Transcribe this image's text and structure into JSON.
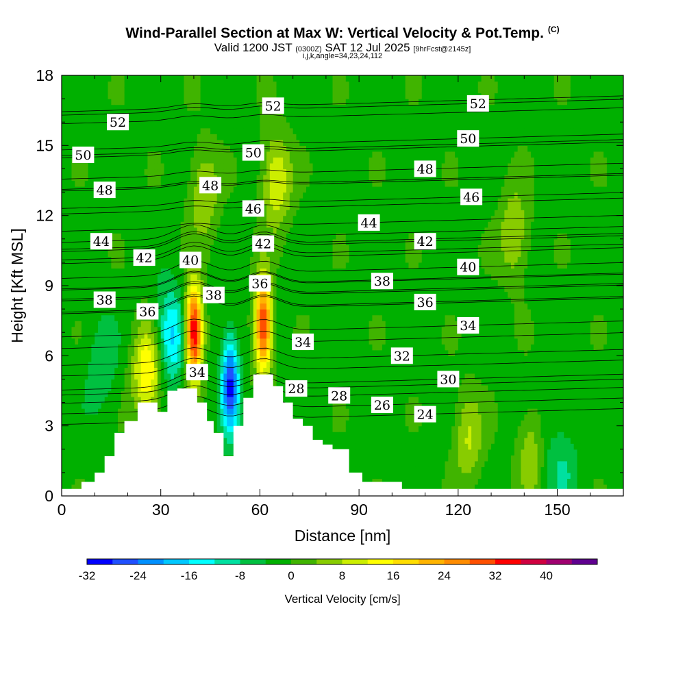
{
  "header": {
    "title": "Wind-Parallel Section at Max W: Vertical Velocity & Pot.Temp.",
    "copyright": "(C)",
    "valid_main": "Valid 1200 JST",
    "valid_utc": "(0300Z)",
    "valid_date": "SAT 12 Jul 2025",
    "forecast": "[9hrFcst@2145z]",
    "indices": "i,j,k,angle=34,23,24,112"
  },
  "chart_data": {
    "type": "heatmap",
    "xlabel": "Distance [nm]",
    "ylabel": "Height [Kft MSL]",
    "xlim": [
      0,
      170
    ],
    "ylim": [
      0,
      18
    ],
    "x_ticks": [
      "0",
      "30",
      "60",
      "90",
      "120",
      "150"
    ],
    "y_ticks": [
      "0",
      "3",
      "6",
      "9",
      "12",
      "15",
      "18"
    ],
    "colorbar": {
      "label": "Vertical Velocity [cm/s]",
      "tick_labels": [
        "-32",
        "-24",
        "-16",
        "-8",
        "0",
        "8",
        "16",
        "24",
        "32",
        "40"
      ],
      "levels": [
        -32,
        -28,
        -24,
        -20,
        -16,
        -12,
        -8,
        -4,
        0,
        4,
        8,
        12,
        16,
        20,
        24,
        28,
        32,
        36,
        40,
        44
      ],
      "colors": [
        "#0000ff",
        "#2050ff",
        "#0090ff",
        "#00c8ff",
        "#00ffff",
        "#00e0a0",
        "#00c040",
        "#00b000",
        "#40b400",
        "#88cc00",
        "#ccee00",
        "#ffff00",
        "#ffdd00",
        "#ffb400",
        "#ff8c00",
        "#ff5000",
        "#ff0000",
        "#d00040",
        "#a00070",
        "#600090"
      ]
    },
    "terrain_profile": [
      [
        0,
        0.3
      ],
      [
        6,
        0.3
      ],
      [
        6,
        0.6
      ],
      [
        10,
        0.6
      ],
      [
        10,
        1.0
      ],
      [
        13,
        1.0
      ],
      [
        13,
        1.7
      ],
      [
        16,
        1.7
      ],
      [
        16,
        2.7
      ],
      [
        19,
        2.7
      ],
      [
        19,
        3.2
      ],
      [
        23,
        3.2
      ],
      [
        23,
        4.0
      ],
      [
        29,
        4.0
      ],
      [
        29,
        3.6
      ],
      [
        32,
        3.6
      ],
      [
        32,
        4.5
      ],
      [
        35,
        4.5
      ],
      [
        35,
        4.6
      ],
      [
        41,
        4.6
      ],
      [
        41,
        4.0
      ],
      [
        44,
        4.0
      ],
      [
        44,
        3.2
      ],
      [
        46,
        3.2
      ],
      [
        46,
        2.7
      ],
      [
        49,
        2.7
      ],
      [
        49,
        1.7
      ],
      [
        52,
        1.7
      ],
      [
        52,
        3.0
      ],
      [
        55,
        3.0
      ],
      [
        55,
        4.2
      ],
      [
        58,
        4.2
      ],
      [
        58,
        5.2
      ],
      [
        64,
        5.2
      ],
      [
        64,
        4.7
      ],
      [
        67,
        4.7
      ],
      [
        67,
        4.0
      ],
      [
        70,
        4.0
      ],
      [
        70,
        3.3
      ],
      [
        73,
        3.3
      ],
      [
        73,
        3.0
      ],
      [
        76,
        3.0
      ],
      [
        76,
        2.4
      ],
      [
        79,
        2.4
      ],
      [
        79,
        2.2
      ],
      [
        82,
        2.2
      ],
      [
        82,
        2.0
      ],
      [
        87,
        2.0
      ],
      [
        87,
        1.0
      ],
      [
        91,
        1.0
      ],
      [
        91,
        0.6
      ],
      [
        103,
        0.6
      ],
      [
        103,
        0.3
      ],
      [
        170,
        0.3
      ]
    ],
    "features": [
      {
        "type": "updraft",
        "x": 40,
        "y": 7.0,
        "value": 40
      },
      {
        "type": "updraft",
        "x": 61,
        "y": 7.3,
        "value": 36
      },
      {
        "type": "downdraft",
        "x": 51,
        "y": 4.8,
        "value": -28
      },
      {
        "type": "updraft",
        "x": 26,
        "y": 5.3,
        "value": 18
      },
      {
        "type": "updraft",
        "x": 65,
        "y": 13.5,
        "value": 14
      },
      {
        "type": "updraft",
        "x": 43,
        "y": 13.0,
        "value": 10
      },
      {
        "type": "updraft",
        "x": 137,
        "y": 11.2,
        "value": 10
      },
      {
        "type": "updraft",
        "x": 143,
        "y": 1.8,
        "value": 14
      },
      {
        "type": "updraft",
        "x": 123,
        "y": 2.5,
        "value": 10
      },
      {
        "type": "downdraft",
        "x": 33,
        "y": 6.8,
        "value": -16
      },
      {
        "type": "downdraft",
        "x": 12,
        "y": 5.5,
        "value": -6
      },
      {
        "type": "downdraft",
        "x": 145,
        "y": 1.8,
        "value": -8
      },
      {
        "type": "downdraft",
        "x": 152,
        "y": 1.2,
        "value": -6
      }
    ],
    "isentropes": [
      {
        "theta": "52",
        "x": 17,
        "y": 16.0
      },
      {
        "theta": "52",
        "x": 64,
        "y": 16.7
      },
      {
        "theta": "52",
        "x": 126,
        "y": 16.8
      },
      {
        "theta": "50",
        "x": 6.5,
        "y": 14.6
      },
      {
        "theta": "50",
        "x": 58,
        "y": 14.7
      },
      {
        "theta": "50",
        "x": 123,
        "y": 15.3
      },
      {
        "theta": "48",
        "x": 13,
        "y": 13.1
      },
      {
        "theta": "48",
        "x": 45,
        "y": 13.3
      },
      {
        "theta": "48",
        "x": 110,
        "y": 14.0
      },
      {
        "theta": "46",
        "x": 58,
        "y": 12.3
      },
      {
        "theta": "46",
        "x": 124,
        "y": 12.8
      },
      {
        "theta": "44",
        "x": 93,
        "y": 11.7
      },
      {
        "theta": "44",
        "x": 12,
        "y": 10.9
      },
      {
        "theta": "42",
        "x": 25,
        "y": 10.2
      },
      {
        "theta": "42",
        "x": 61,
        "y": 10.8
      },
      {
        "theta": "42",
        "x": 110,
        "y": 10.9
      },
      {
        "theta": "40",
        "x": 39,
        "y": 10.1
      },
      {
        "theta": "40",
        "x": 123,
        "y": 9.8
      },
      {
        "theta": "38",
        "x": 13,
        "y": 8.4
      },
      {
        "theta": "38",
        "x": 46,
        "y": 8.6
      },
      {
        "theta": "38",
        "x": 97,
        "y": 9.2
      },
      {
        "theta": "36",
        "x": 26,
        "y": 7.9
      },
      {
        "theta": "36",
        "x": 60,
        "y": 9.1
      },
      {
        "theta": "36",
        "x": 110,
        "y": 8.3
      },
      {
        "theta": "34",
        "x": 41,
        "y": 5.3
      },
      {
        "theta": "34",
        "x": 73,
        "y": 6.6
      },
      {
        "theta": "34",
        "x": 123,
        "y": 7.3
      },
      {
        "theta": "32",
        "x": 103,
        "y": 6.0
      },
      {
        "theta": "30",
        "x": 117,
        "y": 5.0
      },
      {
        "theta": "28",
        "x": 71,
        "y": 4.6
      },
      {
        "theta": "28",
        "x": 84,
        "y": 4.3
      },
      {
        "theta": "26",
        "x": 97,
        "y": 3.9
      },
      {
        "theta": "24",
        "x": 110,
        "y": 3.5
      }
    ]
  }
}
